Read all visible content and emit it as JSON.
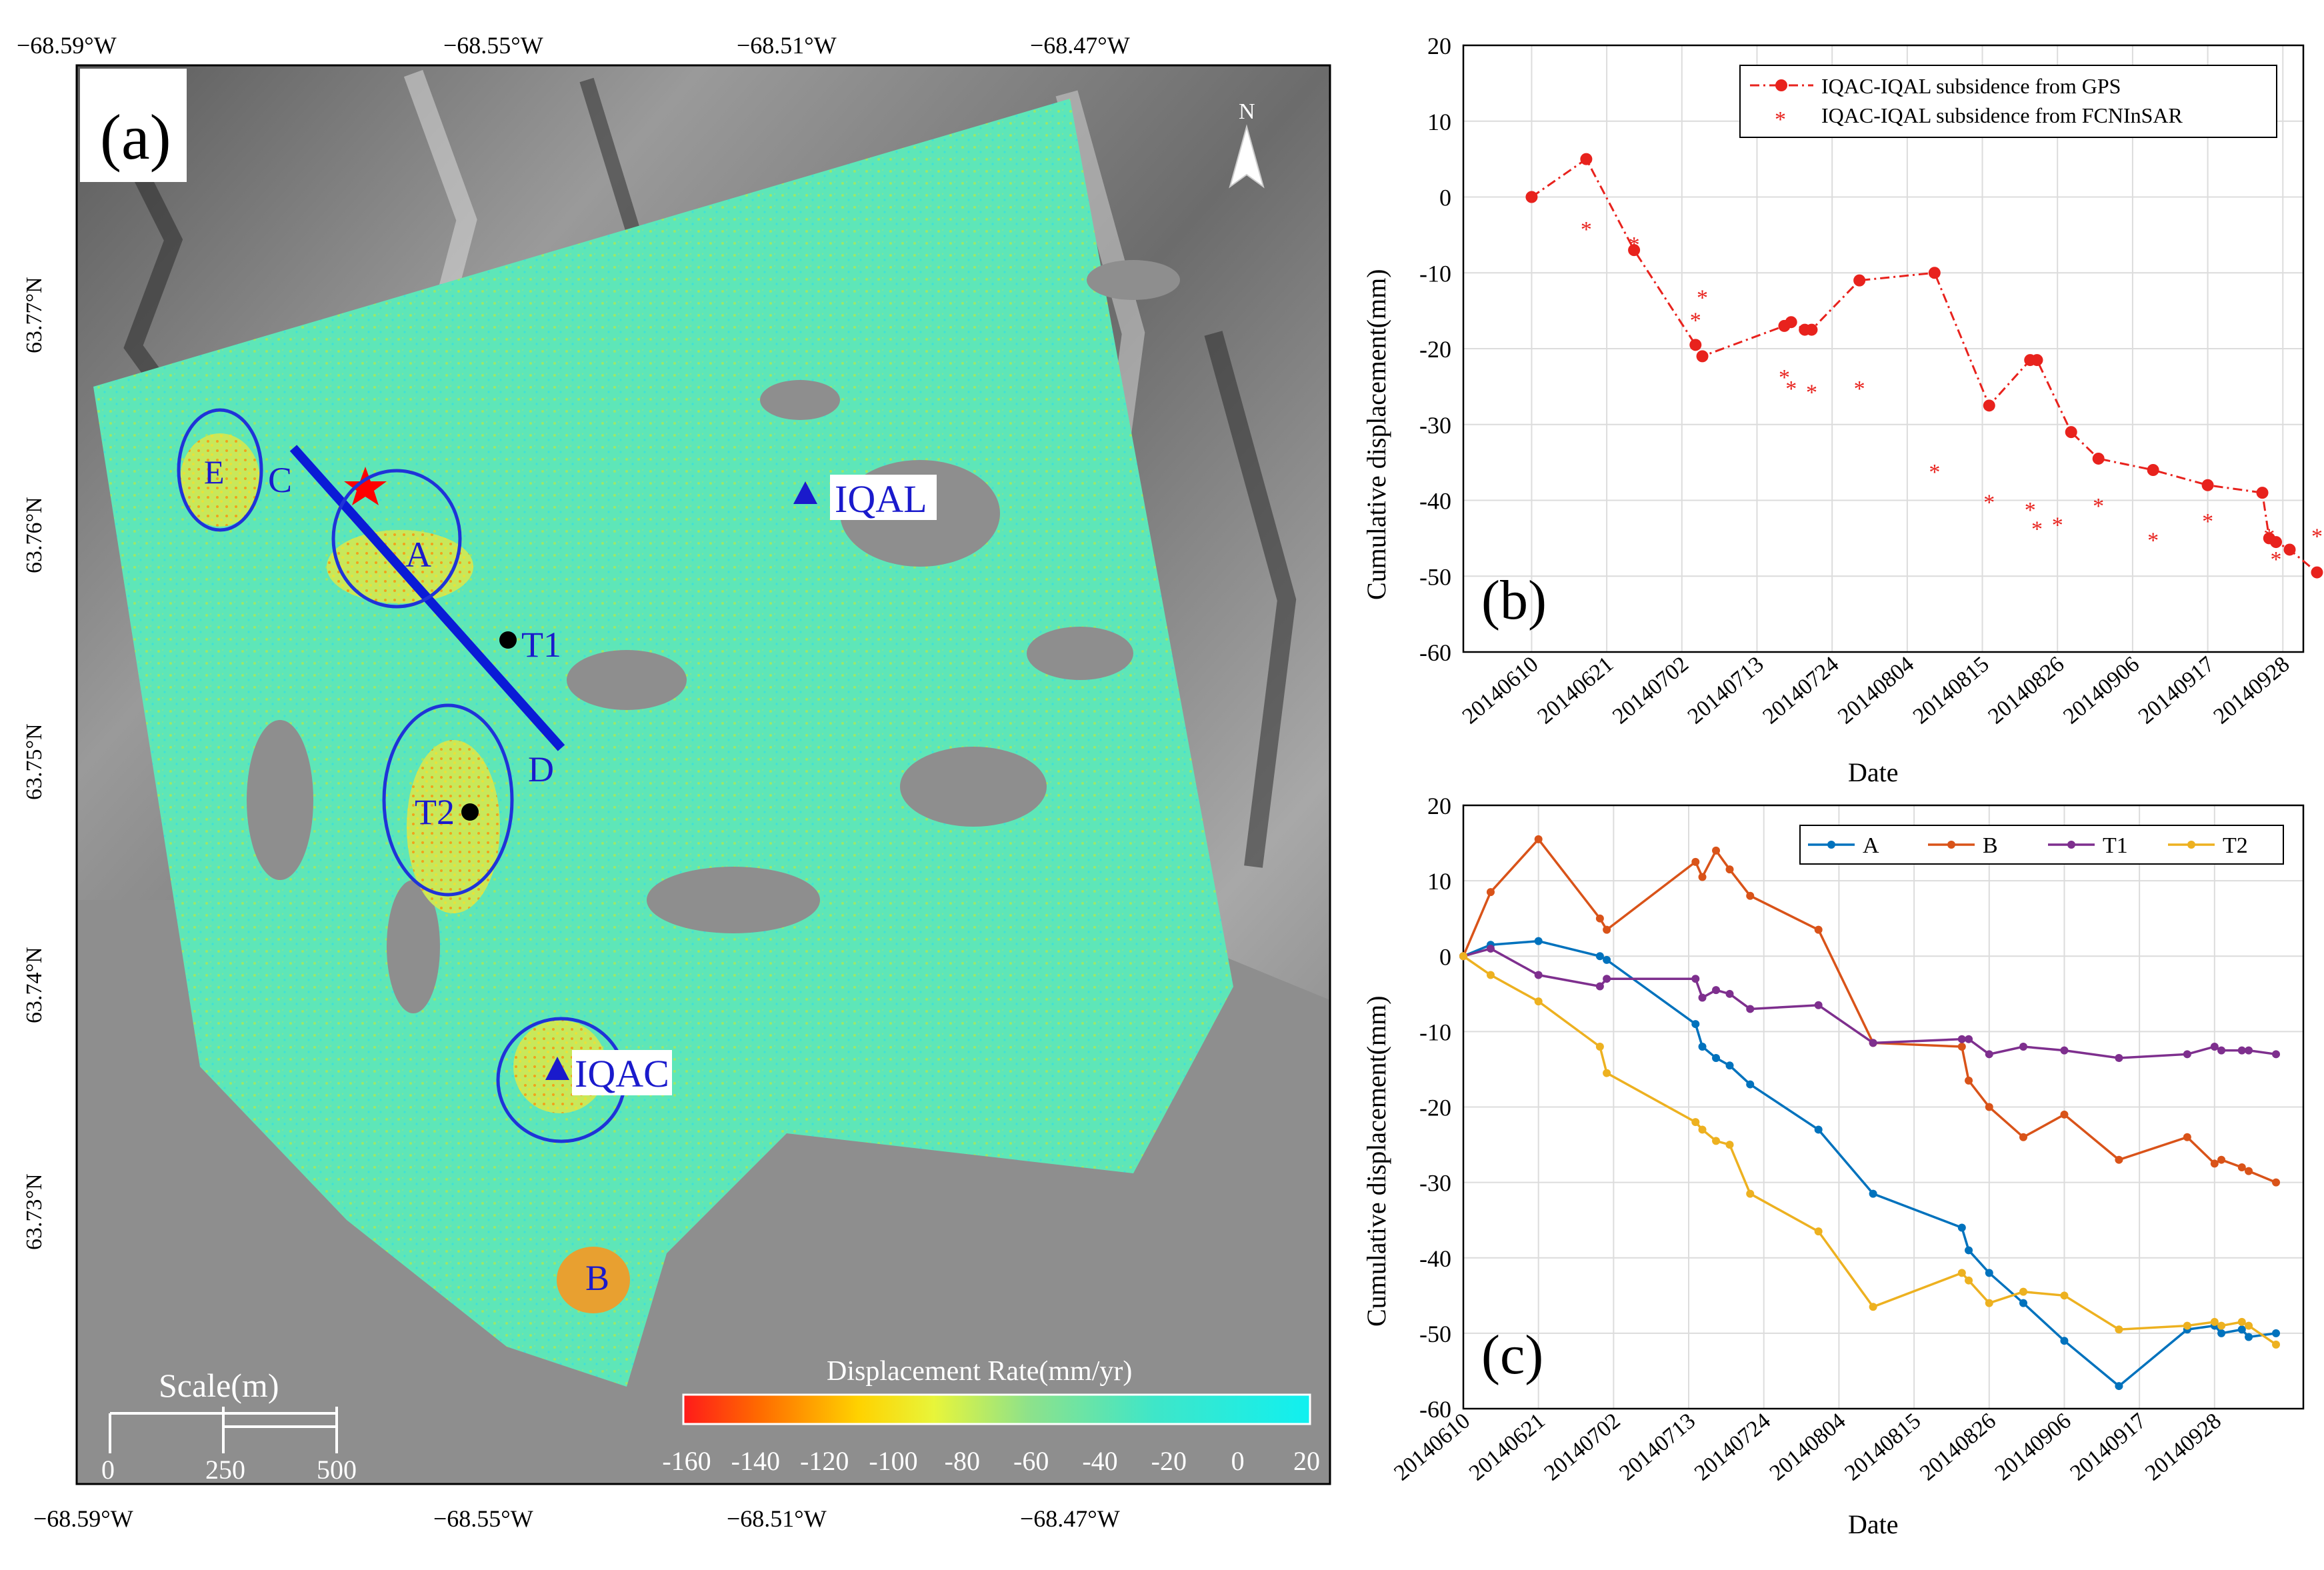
{
  "panel_a": {
    "label": "(a)",
    "lon_ticks_top": [
      "−68.59°W",
      "−68.55°W",
      "−68.51°W",
      "−68.47°W"
    ],
    "lon_ticks_bottom": [
      "−68.59°W",
      "−68.55°W",
      "−68.51°W",
      "−68.47°W"
    ],
    "lat_ticks": [
      "63.77°N",
      "63.76°N",
      "63.75°N",
      "63.74°N",
      "63.73°N"
    ],
    "north": "N",
    "stations": {
      "iqal": "IQAL",
      "iqac": "IQAC"
    },
    "points": {
      "t1": "T1",
      "t2": "T2"
    },
    "areas": {
      "a": "A",
      "b": "B",
      "e": "E"
    },
    "profile": {
      "start": "C",
      "end": "D"
    },
    "scale": {
      "title": "Scale(m)",
      "labels": [
        "0",
        "250",
        "500"
      ]
    },
    "colorbar": {
      "title": "Displacement Rate(mm/yr)",
      "ticks": [
        "-160",
        "-140",
        "-120",
        "-100",
        "-80",
        "-60",
        "-40",
        "-20",
        "0",
        "20"
      ]
    }
  },
  "panel_b": {
    "label": "(b)",
    "ylabel": "Cumulative displacement(mm)",
    "xlabel": "Date",
    "legend": [
      "IQAC-IQAL subsidence from GPS",
      "IQAC-IQAL subsidence from FCNInSAR"
    ],
    "yticks": [
      "20",
      "10",
      "0",
      "-10",
      "-20",
      "-30",
      "-40",
      "-50",
      "-60"
    ],
    "xticks": [
      "20140610",
      "20140621",
      "20140702",
      "20140713",
      "20140724",
      "20140804",
      "20140815",
      "20140826",
      "20140906",
      "20140917",
      "20140928"
    ]
  },
  "panel_c": {
    "label": "(c)",
    "ylabel": "Cumulative displacement(mm)",
    "xlabel": "Date",
    "yticks": [
      "20",
      "10",
      "0",
      "-10",
      "-20",
      "-30",
      "-40",
      "-50",
      "-60"
    ],
    "xticks": [
      "20140610",
      "20140621",
      "20140702",
      "20140713",
      "20140724",
      "20140804",
      "20140815",
      "20140826",
      "20140906",
      "20140917",
      "20140928"
    ]
  },
  "chart_data": [
    {
      "panel": "b",
      "type": "line",
      "xlabel": "Date",
      "ylabel": "Cumulative displacement(mm)",
      "x_unit": "days since 20140610",
      "xlim": [
        -10,
        113
      ],
      "ylim": [
        -60,
        20
      ],
      "grid": true,
      "legend_position": "top-right",
      "series": [
        {
          "name": "IQAC-IQAL subsidence from GPS",
          "style": "dash-dot-circle",
          "color": "#e8221d",
          "x": [
            0,
            8,
            15,
            24,
            25,
            37,
            38,
            40,
            41,
            48,
            59,
            67,
            73,
            74,
            79,
            83,
            91,
            99,
            107,
            108,
            109,
            111,
            115
          ],
          "y": [
            0,
            5,
            -7,
            -19.5,
            -21,
            -17,
            -16.5,
            -17.5,
            -17.5,
            -11,
            -10,
            -27.5,
            -21.5,
            -21.5,
            -31,
            -34.5,
            -36,
            -38,
            -39,
            -45,
            -45.5,
            -46.5,
            -49.5
          ]
        },
        {
          "name": "IQAC-IQAL subsidence from FCNInSAR",
          "style": "asterisk",
          "color": "#e8221d",
          "x": [
            8,
            15,
            24,
            25,
            37,
            38,
            41,
            48,
            59,
            67,
            73,
            74,
            77,
            83,
            91,
            99,
            108,
            109,
            115
          ],
          "y": [
            -4,
            -6,
            -16,
            -13,
            -23.5,
            -25,
            -25.5,
            -25,
            -36,
            -40,
            -41,
            -43.5,
            -43,
            -40.5,
            -45,
            -42.5,
            -44.5,
            -47.5,
            -44.5
          ]
        }
      ]
    },
    {
      "panel": "c",
      "type": "line",
      "xlabel": "Date",
      "ylabel": "Cumulative displacement(mm)",
      "x_unit": "days since 20140610",
      "xlim": [
        0,
        123
      ],
      "ylim": [
        -60,
        20
      ],
      "grid": true,
      "legend_position": "top-right",
      "x": [
        0,
        4,
        11,
        20,
        21,
        34,
        35,
        37,
        39,
        42,
        52,
        60,
        73,
        74,
        77,
        82,
        88,
        96,
        106,
        110,
        111,
        114,
        115,
        119
      ],
      "series": [
        {
          "name": "A",
          "color": "#0072bd",
          "values": [
            0,
            1.5,
            2,
            0,
            -0.5,
            -9,
            -12,
            -13.5,
            -14.5,
            -17,
            -23,
            -31.5,
            -36,
            -39,
            -42,
            -46,
            -51,
            -57,
            -49.5,
            -49,
            -50,
            -49.5,
            -50.5,
            -50
          ]
        },
        {
          "name": "B",
          "color": "#d95319",
          "values": [
            0,
            8.5,
            15.5,
            5,
            3.5,
            12.5,
            10.5,
            14,
            11.5,
            8,
            3.5,
            -11.5,
            -12,
            -16.5,
            -20,
            -24,
            -21,
            -27,
            -24,
            -27.5,
            -27,
            -28,
            -28.5,
            -30
          ]
        },
        {
          "name": "T1",
          "color": "#7e2f8e",
          "values": [
            0,
            1,
            -2.5,
            -4,
            -3,
            -3,
            -5.5,
            -4.5,
            -5,
            -7,
            -6.5,
            -11.5,
            -11,
            -11,
            -13,
            -12,
            -12.5,
            -13.5,
            -13,
            -12,
            -12.5,
            -12.5,
            -12.5,
            -13
          ]
        },
        {
          "name": "T2",
          "color": "#edb120",
          "values": [
            0,
            -2.5,
            -6,
            -12,
            -15.5,
            -22,
            -23,
            -24.5,
            -25,
            -31.5,
            -36.5,
            -46.5,
            -42,
            -43,
            -46,
            -44.5,
            -45,
            -49.5,
            -49,
            -48.5,
            -49,
            -48.5,
            -49,
            -51.5
          ]
        }
      ]
    }
  ]
}
